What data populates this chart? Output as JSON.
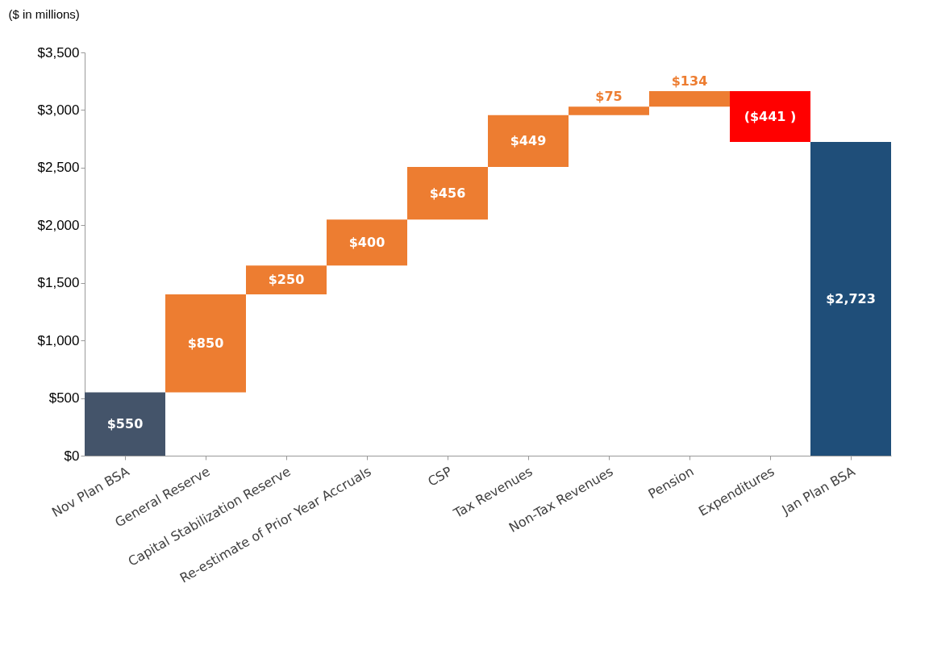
{
  "chart_data": {
    "type": "bar",
    "ylabel": "($ in millions)",
    "categories": [
      "Nov Plan BSA",
      "General Reserve",
      "Capital Stabilization Reserve",
      "Re-estimate of Prior Year Accruals",
      "CSP",
      "Tax Revenues",
      "Non-Tax Revenues",
      "Pension",
      "Expenditures",
      "Jan Plan BSA"
    ],
    "values": [
      550,
      850,
      250,
      400,
      456,
      449,
      75,
      134,
      -441,
      2723
    ],
    "base": [
      0,
      550,
      1400,
      1650,
      2050,
      2506,
      2955,
      3030,
      3164,
      0
    ],
    "colors": [
      "#44546a",
      "#ed7d31",
      "#ed7d31",
      "#ed7d31",
      "#ed7d31",
      "#ed7d31",
      "#ed7d31",
      "#ed7d31",
      "#ff0000",
      "#1f4e79"
    ],
    "value_labels": [
      "$550",
      "$850",
      "$250",
      "$400",
      "$456",
      "$449",
      "$75",
      "$134",
      "($441 )",
      "$2,723"
    ],
    "ylim": [
      0,
      3500
    ],
    "yticks": [
      {
        "value": 0,
        "label": "$0"
      },
      {
        "value": 500,
        "label": "$500"
      },
      {
        "value": 1000,
        "label": "$1,000"
      },
      {
        "value": 1500,
        "label": "$1,500"
      },
      {
        "value": 2000,
        "label": "$2,000"
      },
      {
        "value": 2500,
        "label": "$2,500"
      },
      {
        "value": 3000,
        "label": "$3,000"
      },
      {
        "value": 3500,
        "label": "$3,500"
      }
    ],
    "grid": false
  }
}
